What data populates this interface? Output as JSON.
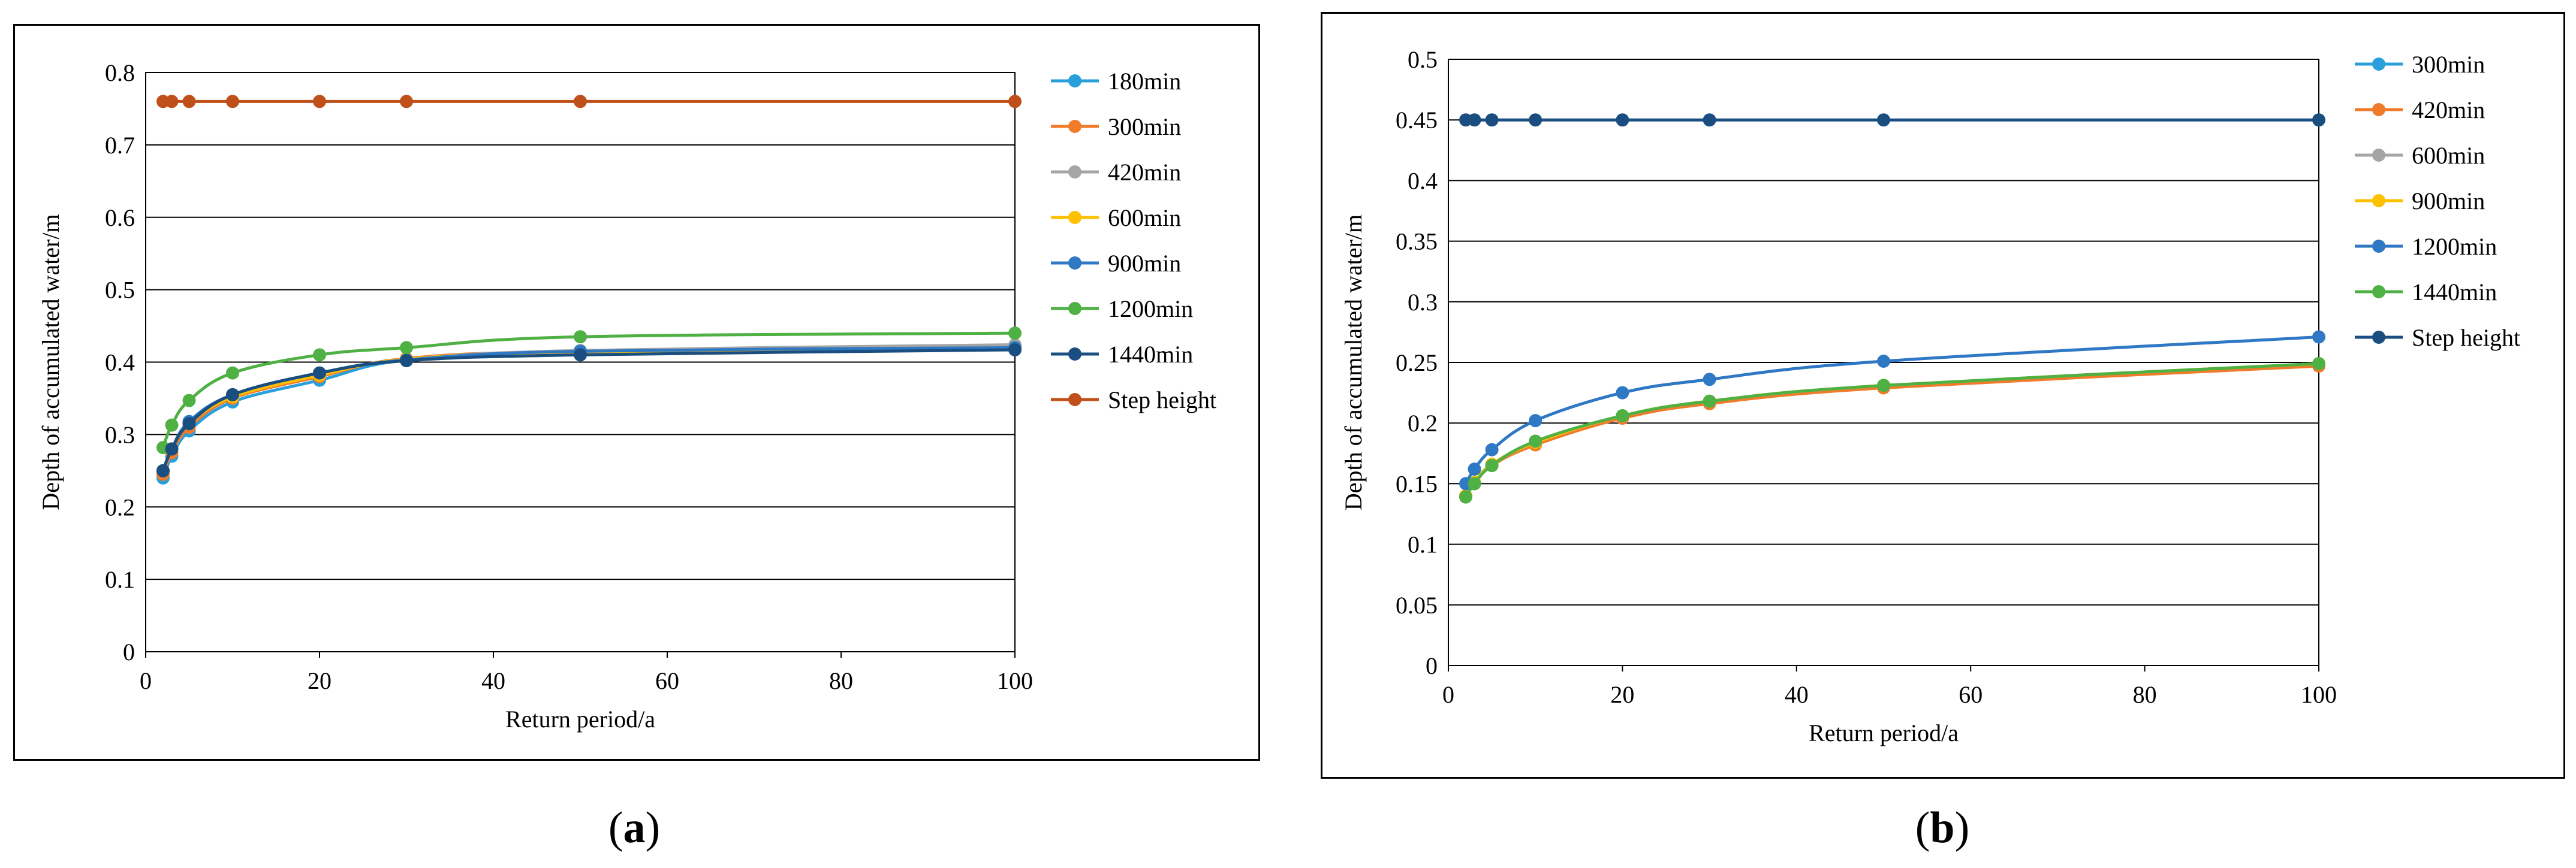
{
  "chart_data": [
    {
      "type": "line",
      "panel_label": "a",
      "xlabel": "Return period/a",
      "ylabel": "Depth of accumulated water/m",
      "xlim": [
        0,
        100
      ],
      "ylim": [
        0,
        0.8
      ],
      "x_ticks": [
        0,
        20,
        40,
        60,
        80,
        100
      ],
      "y_ticks": [
        0,
        0.1,
        0.2,
        0.3,
        0.4,
        0.5,
        0.6,
        0.7,
        0.8
      ],
      "y_tick_labels": [
        "0",
        "0.1",
        "0.2",
        "0.3",
        "0.4",
        "0.5",
        "0.6",
        "0.7",
        "0.8"
      ],
      "grid": "horizontal",
      "legend_position": "right",
      "x": [
        2,
        3,
        5,
        10,
        20,
        30,
        50,
        100
      ],
      "series": [
        {
          "name": "180min",
          "color": "#29a0db",
          "values": [
            0.24,
            0.27,
            0.305,
            0.345,
            0.375,
            0.403,
            0.414,
            0.418
          ]
        },
        {
          "name": "300min",
          "color": "#f07b2a",
          "values": [
            0.245,
            0.275,
            0.31,
            0.35,
            0.38,
            0.405,
            0.415,
            0.42
          ]
        },
        {
          "name": "420min",
          "color": "#a5a5a5",
          "values": [
            0.25,
            0.28,
            0.315,
            0.352,
            0.383,
            0.404,
            0.416,
            0.424
          ]
        },
        {
          "name": "600min",
          "color": "#ffc000",
          "values": [
            0.25,
            0.28,
            0.315,
            0.352,
            0.382,
            0.404,
            0.414,
            0.42
          ]
        },
        {
          "name": "900min",
          "color": "#2f78c4",
          "values": [
            0.25,
            0.28,
            0.318,
            0.355,
            0.385,
            0.403,
            0.415,
            0.42
          ]
        },
        {
          "name": "1200min",
          "color": "#4fb044",
          "values": [
            0.282,
            0.313,
            0.347,
            0.385,
            0.41,
            0.42,
            0.435,
            0.44
          ]
        },
        {
          "name": "1440min",
          "color": "#1a4e80",
          "values": [
            0.25,
            0.28,
            0.315,
            0.355,
            0.385,
            0.402,
            0.41,
            0.417
          ]
        },
        {
          "name": "Step height",
          "color": "#c0501a",
          "values": [
            0.76,
            0.76,
            0.76,
            0.76,
            0.76,
            0.76,
            0.76,
            0.76
          ]
        }
      ]
    },
    {
      "type": "line",
      "panel_label": "b",
      "xlabel": "Return period/a",
      "ylabel": "Depth of accumulated water/m",
      "xlim": [
        0,
        100
      ],
      "ylim": [
        0,
        0.5
      ],
      "x_ticks": [
        0,
        20,
        40,
        60,
        80,
        100
      ],
      "y_ticks": [
        0,
        0.05,
        0.1,
        0.15,
        0.2,
        0.25,
        0.3,
        0.35,
        0.4,
        0.45,
        0.5
      ],
      "y_tick_labels": [
        "0",
        "0.05",
        "0.1",
        "0.15",
        "0.2",
        "0.25",
        "0.3",
        "0.35",
        "0.4",
        "0.45",
        "0.5"
      ],
      "grid": "horizontal",
      "legend_position": "right",
      "x": [
        2,
        3,
        5,
        10,
        20,
        30,
        50,
        100
      ],
      "series": [
        {
          "name": "300min",
          "color": "#29a0db",
          "values": [
            0.14,
            0.15,
            0.165,
            0.183,
            0.205,
            0.217,
            0.23,
            0.248
          ]
        },
        {
          "name": "420min",
          "color": "#f07b2a",
          "values": [
            0.14,
            0.15,
            0.165,
            0.182,
            0.204,
            0.216,
            0.229,
            0.247
          ]
        },
        {
          "name": "600min",
          "color": "#a5a5a5",
          "values": [
            0.14,
            0.151,
            0.166,
            0.184,
            0.206,
            0.218,
            0.231,
            0.249
          ]
        },
        {
          "name": "900min",
          "color": "#ffc000",
          "values": [
            0.14,
            0.151,
            0.166,
            0.184,
            0.206,
            0.218,
            0.231,
            0.249
          ]
        },
        {
          "name": "1200min",
          "color": "#2f78c4",
          "values": [
            0.15,
            0.162,
            0.178,
            0.202,
            0.225,
            0.236,
            0.251,
            0.271
          ]
        },
        {
          "name": "1440min",
          "color": "#4fb044",
          "values": [
            0.139,
            0.15,
            0.165,
            0.185,
            0.206,
            0.218,
            0.231,
            0.249
          ]
        },
        {
          "name": "Step height",
          "color": "#1a4e80",
          "values": [
            0.45,
            0.45,
            0.45,
            0.45,
            0.45,
            0.45,
            0.45,
            0.45
          ]
        }
      ]
    }
  ]
}
